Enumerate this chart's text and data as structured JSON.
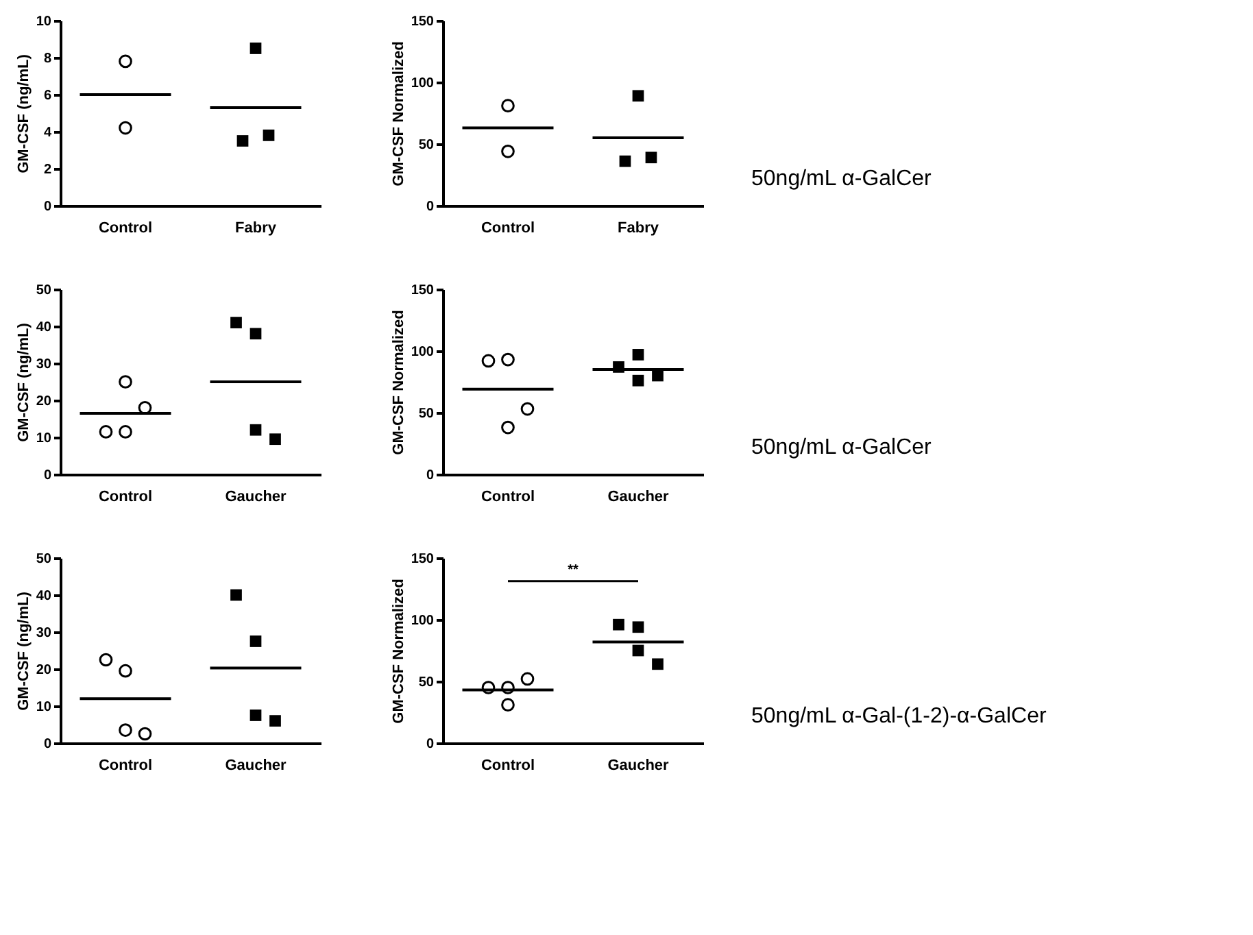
{
  "chart_data": [
    {
      "type": "scatter",
      "categories": [
        "Control",
        "Fabry"
      ],
      "ylabel": "GM-CSF (ng/mL)",
      "ylim": [
        0,
        10
      ],
      "yticks": [
        0,
        2,
        4,
        6,
        8,
        10
      ],
      "ref_lines": [
        {
          "axis": "y",
          "value": 6.0
        },
        {
          "axis": "y",
          "value": 5.3
        }
      ],
      "series": [
        {
          "x": [
            "Control",
            "Control"
          ],
          "values": [
            7.8,
            4.2
          ],
          "color": "#000000",
          "marker": "circle"
        },
        {
          "x": [
            "Fabry",
            "Fabry",
            "Fabry"
          ],
          "values": [
            8.5,
            3.5,
            3.8
          ],
          "color": "#000000",
          "marker": "square"
        }
      ]
    },
    {
      "type": "scatter",
      "categories": [
        "Control",
        "Fabry"
      ],
      "ylabel": "GM-CSF Normalized",
      "ylim": [
        0,
        150
      ],
      "yticks": [
        0,
        50,
        100,
        150
      ],
      "annotations": [
        "50ng/mL α-GalCer"
      ],
      "ref_lines": [
        {
          "axis": "y",
          "value": 63
        },
        {
          "axis": "y",
          "value": 55
        }
      ],
      "series": [
        {
          "x": [
            "Control",
            "Control"
          ],
          "values": [
            81,
            44
          ],
          "color": "#000000",
          "marker": "circle"
        },
        {
          "x": [
            "Fabry",
            "Fabry",
            "Fabry"
          ],
          "values": [
            89,
            36,
            39
          ],
          "color": "#000000",
          "marker": "square"
        }
      ]
    },
    {
      "type": "scatter",
      "categories": [
        "Control",
        "Gaucher"
      ],
      "ylabel": "GM-CSF (ng/mL)",
      "ylim": [
        0,
        50
      ],
      "yticks": [
        0,
        10,
        20,
        30,
        40,
        50
      ],
      "ref_lines": [
        {
          "axis": "y",
          "value": 16.5
        },
        {
          "axis": "y",
          "value": 25
        }
      ],
      "series": [
        {
          "x": [
            "Control",
            "Control",
            "Control",
            "Control"
          ],
          "values": [
            11.5,
            11.5,
            18,
            25
          ],
          "color": "#000000",
          "marker": "circle"
        },
        {
          "x": [
            "Gaucher",
            "Gaucher",
            "Gaucher",
            "Gaucher"
          ],
          "values": [
            41,
            38,
            9.5,
            12
          ],
          "color": "#000000",
          "marker": "square"
        }
      ]
    },
    {
      "type": "scatter",
      "categories": [
        "Control",
        "Gaucher"
      ],
      "ylabel": "GM-CSF Normalized",
      "ylim": [
        0,
        150
      ],
      "yticks": [
        0,
        50,
        100,
        150
      ],
      "annotations": [
        "50ng/mL α-GalCer"
      ],
      "ref_lines": [
        {
          "axis": "y",
          "value": 69
        },
        {
          "axis": "y",
          "value": 85
        }
      ],
      "series": [
        {
          "x": [
            "Control",
            "Control",
            "Control",
            "Control"
          ],
          "values": [
            92,
            93,
            53,
            38
          ],
          "color": "#000000",
          "marker": "circle"
        },
        {
          "x": [
            "Gaucher",
            "Gaucher",
            "Gaucher",
            "Gaucher"
          ],
          "values": [
            87,
            97,
            80,
            76
          ],
          "color": "#000000",
          "marker": "square"
        }
      ]
    },
    {
      "type": "scatter",
      "categories": [
        "Control",
        "Gaucher"
      ],
      "ylabel": "GM-CSF (ng/mL)",
      "ylim": [
        0,
        50
      ],
      "yticks": [
        0,
        10,
        20,
        30,
        40,
        50
      ],
      "ref_lines": [
        {
          "axis": "y",
          "value": 12
        },
        {
          "axis": "y",
          "value": 20.3
        }
      ],
      "series": [
        {
          "x": [
            "Control",
            "Control",
            "Control",
            "Control"
          ],
          "values": [
            22.5,
            19.5,
            2.5,
            3.5
          ],
          "color": "#000000",
          "marker": "circle"
        },
        {
          "x": [
            "Gaucher",
            "Gaucher",
            "Gaucher",
            "Gaucher"
          ],
          "values": [
            40,
            27.5,
            6,
            7.5
          ],
          "color": "#000000",
          "marker": "square"
        }
      ]
    },
    {
      "type": "scatter",
      "categories": [
        "Control",
        "Gaucher"
      ],
      "ylabel": "GM-CSF Normalized",
      "ylim": [
        0,
        150
      ],
      "yticks": [
        0,
        50,
        100,
        150
      ],
      "annotations": [
        "**",
        "50ng/mL α-Gal-(1-2)-α-GalCer"
      ],
      "ref_lines": [
        {
          "axis": "y",
          "value": 43
        },
        {
          "axis": "y",
          "value": 82
        }
      ],
      "series": [
        {
          "x": [
            "Control",
            "Control",
            "Control",
            "Control"
          ],
          "values": [
            45,
            45,
            52,
            31
          ],
          "color": "#000000",
          "marker": "circle"
        },
        {
          "x": [
            "Gaucher",
            "Gaucher",
            "Gaucher",
            "Gaucher"
          ],
          "values": [
            96,
            94,
            64,
            75
          ],
          "color": "#000000",
          "marker": "square"
        }
      ]
    }
  ]
}
